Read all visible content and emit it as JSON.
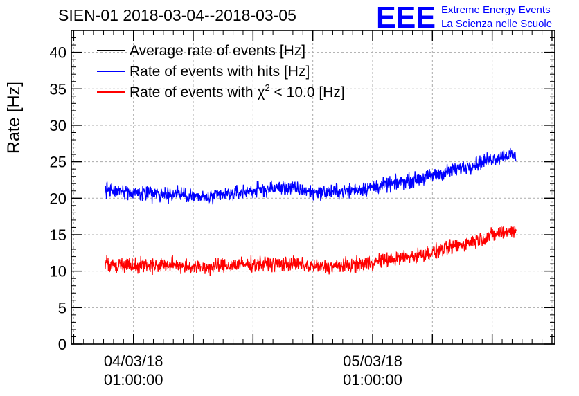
{
  "chart_data": {
    "type": "line",
    "title": "SIEN-01 2018-03-04--2018-03-05",
    "ylabel": "Rate [Hz]",
    "xlabel": "",
    "ylim": [
      0,
      43
    ],
    "y_ticks": [
      0,
      5,
      10,
      15,
      20,
      25,
      30,
      35,
      40
    ],
    "x_major_ticks": [
      {
        "date": "04/03/18",
        "time": "01:00:00",
        "pos": 0.1285
      },
      {
        "date": "05/03/18",
        "time": "01:00:00",
        "pos": 0.6232
      }
    ],
    "grid": true,
    "legend_position": "top-left",
    "series": [
      {
        "name": "Average rate of events [Hz]",
        "color": "#000000",
        "legend_text": "Average rate of events [Hz]",
        "x": [],
        "values": []
      },
      {
        "name": "Rate of events with hits [Hz]",
        "color": "#0000ff",
        "legend_text": "Rate of events with hits [Hz]",
        "x": [
          0.07,
          0.1,
          0.13,
          0.16,
          0.19,
          0.22,
          0.25,
          0.28,
          0.31,
          0.34,
          0.37,
          0.4,
          0.43,
          0.46,
          0.49,
          0.52,
          0.55,
          0.58,
          0.61,
          0.64,
          0.67,
          0.7,
          0.73,
          0.76,
          0.79,
          0.82,
          0.85,
          0.88,
          0.91,
          0.92
        ],
        "values": [
          21.2,
          21.0,
          20.8,
          20.6,
          20.5,
          20.6,
          20.3,
          20.0,
          20.4,
          20.7,
          21.0,
          21.2,
          21.4,
          21.3,
          20.9,
          20.8,
          20.9,
          21.1,
          21.4,
          21.7,
          22.0,
          22.4,
          22.8,
          23.3,
          23.8,
          24.4,
          25.0,
          25.6,
          26.0,
          25.6
        ]
      },
      {
        "name": "Rate of events with chi2 < 10.0 [Hz]",
        "color": "#ff0000",
        "legend_pre": "Rate of events with ",
        "legend_chi": "χ",
        "legend_sup": "2",
        "legend_post": " < 10.0 [Hz]",
        "x": [
          0.07,
          0.1,
          0.13,
          0.16,
          0.19,
          0.22,
          0.25,
          0.28,
          0.31,
          0.34,
          0.37,
          0.4,
          0.43,
          0.46,
          0.49,
          0.52,
          0.55,
          0.58,
          0.61,
          0.64,
          0.67,
          0.7,
          0.73,
          0.76,
          0.79,
          0.82,
          0.85,
          0.88,
          0.91,
          0.92
        ],
        "values": [
          11.0,
          10.9,
          10.9,
          10.8,
          10.8,
          10.9,
          10.6,
          10.5,
          10.7,
          10.9,
          10.9,
          11.0,
          11.0,
          11.0,
          10.7,
          10.6,
          10.7,
          10.8,
          11.1,
          11.4,
          11.7,
          12.0,
          12.3,
          12.8,
          13.3,
          13.9,
          14.5,
          15.1,
          15.6,
          15.3
        ]
      }
    ]
  },
  "logo": {
    "text": "EEE",
    "line1": "Extreme Energy Events",
    "line2": "La Scienza nelle Scuole",
    "color": "#0000ff"
  }
}
